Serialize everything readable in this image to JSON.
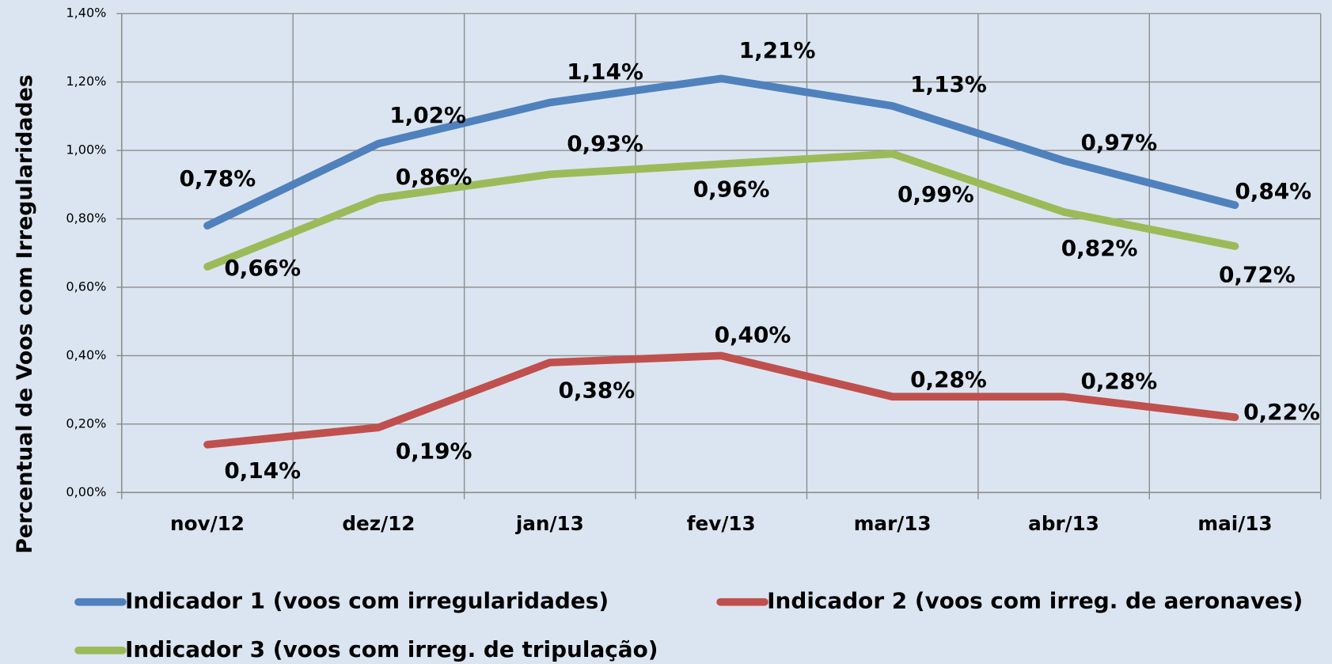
{
  "chart_data": {
    "type": "line",
    "y_label": "Percentual de Voos com Irregularidades",
    "categories": [
      "nov/12",
      "dez/12",
      "jan/13",
      "fev/13",
      "mar/13",
      "abr/13",
      "mai/13"
    ],
    "series": [
      {
        "name": "Indicador 1 (voos com irregularidades)",
        "color": "#4f81bd",
        "label_color": "#376092",
        "values": [
          0.78,
          1.02,
          1.14,
          1.21,
          1.13,
          0.97,
          0.84
        ],
        "value_labels": [
          "0,78%",
          "1,02%",
          "1,14%",
          "1,21%",
          "1,13%",
          "0,97%",
          "0,84%"
        ]
      },
      {
        "name": "Indicador 2 (voos com irreg. de aeronaves)",
        "color": "#c0504d",
        "label_color": "#c00000",
        "values": [
          0.14,
          0.19,
          0.38,
          0.4,
          0.28,
          0.28,
          0.22
        ],
        "value_labels": [
          "0,14%",
          "0,19%",
          "0,38%",
          "0,40%",
          "0,28%",
          "0,28%",
          "0,22%"
        ]
      },
      {
        "name": "Indicador 3 (voos com irreg. de tripulação)",
        "color": "#9bbb59",
        "label_color": "#92d050",
        "values": [
          0.66,
          0.86,
          0.93,
          0.96,
          0.99,
          0.82,
          0.72
        ],
        "value_labels": [
          "0,66%",
          "0,86%",
          "0,93%",
          "0,96%",
          "0,99%",
          "0,82%",
          "0,72%"
        ]
      }
    ],
    "ylim": [
      0,
      1.4
    ],
    "yticks": [
      {
        "value": 0,
        "label": "0,00%"
      },
      {
        "value": 0.2,
        "label": "0,20%"
      },
      {
        "value": 0.4,
        "label": "0,40%"
      },
      {
        "value": 0.6,
        "label": "0,60%"
      },
      {
        "value": 0.8,
        "label": "0,80%"
      },
      {
        "value": 1.0,
        "label": "1,00%"
      },
      {
        "value": 1.2,
        "label": "1,20%"
      },
      {
        "value": 1.4,
        "label": "1,40%"
      }
    ],
    "grid": true,
    "legend": "bottom"
  }
}
